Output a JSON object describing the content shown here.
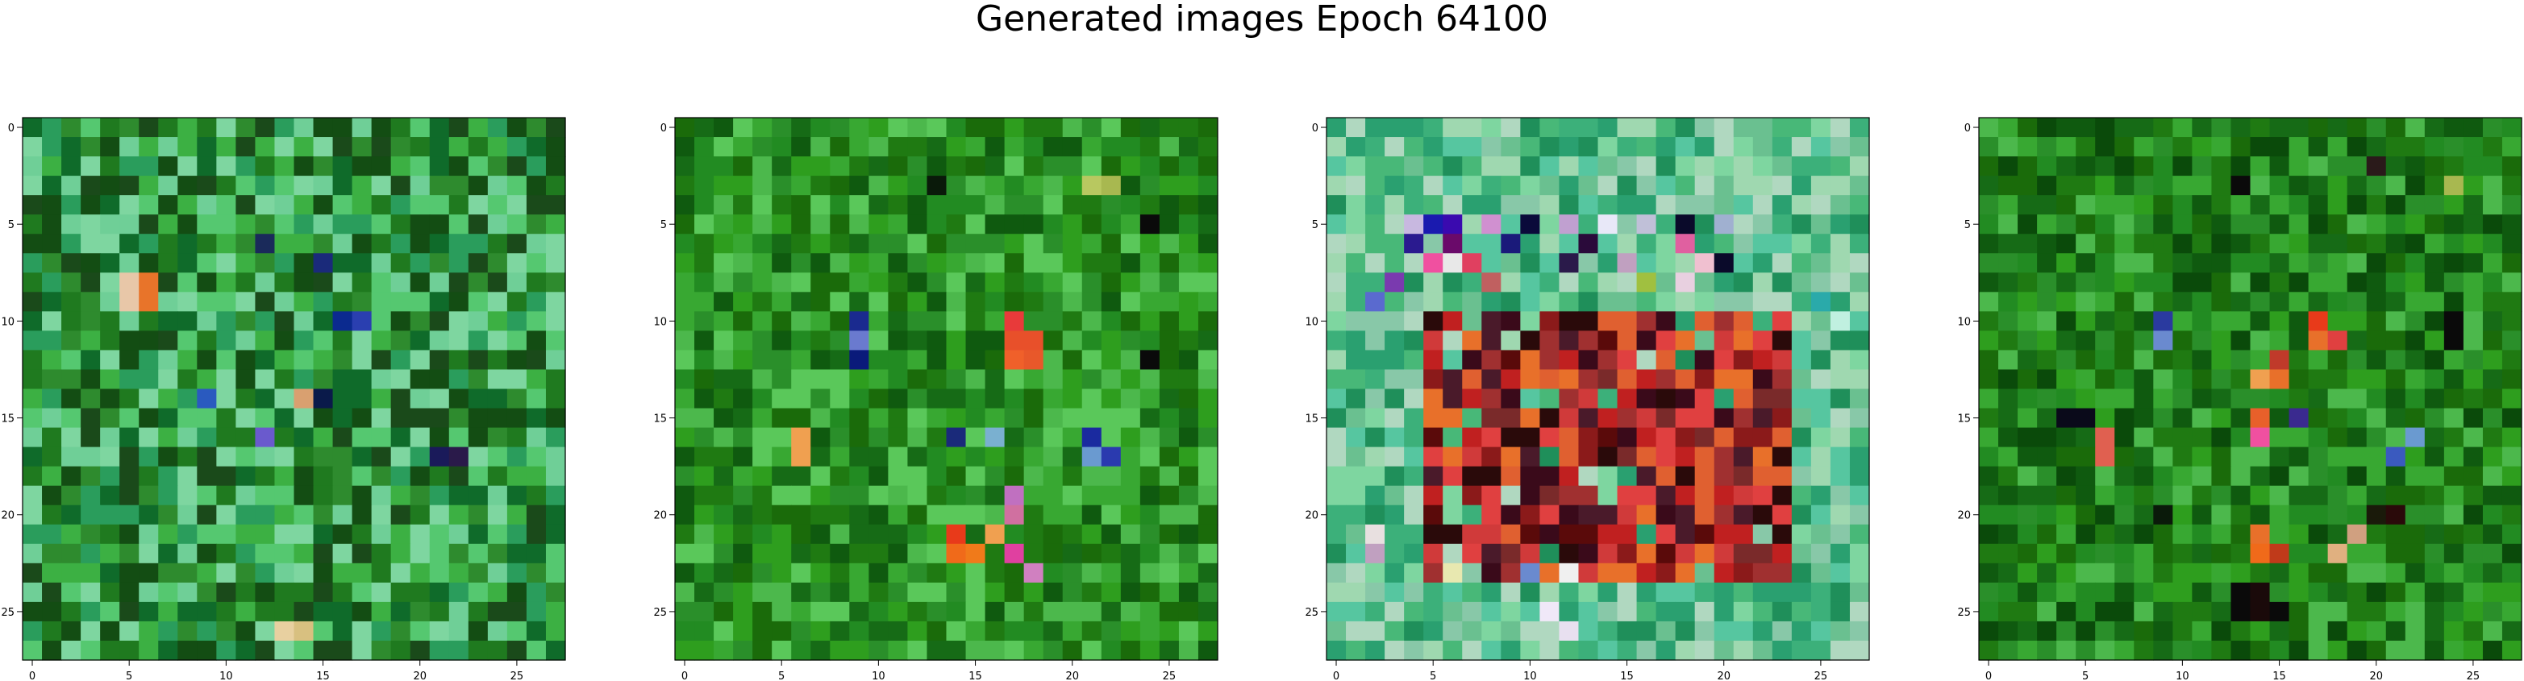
{
  "title": "Generated images Epoch 64100",
  "chart_data": {
    "type": "heatmap",
    "title": "Generated images Epoch 64100",
    "grid": false,
    "image_size": 28,
    "xlim": [
      -0.5,
      27.5
    ],
    "ylim": [
      27.5,
      -0.5
    ],
    "xticks": [
      0,
      5,
      10,
      15,
      20,
      25
    ],
    "yticks": [
      0,
      5,
      10,
      15,
      20,
      25
    ],
    "panels": [
      {
        "palette": [
          "#1a4a1a",
          "#1f7a1f",
          "#2e8b2e",
          "#3cb043",
          "#55c870",
          "#7ed6a0",
          "#0f6b2a",
          "#2a9d5c",
          "#6fcf97",
          "#134d13"
        ],
        "features": [
          {
            "r": 8,
            "c": 5,
            "color": "#e8c7a8"
          },
          {
            "r": 9,
            "c": 5,
            "color": "#e8c7a8"
          },
          {
            "r": 8,
            "c": 6,
            "color": "#e8742a"
          },
          {
            "r": 9,
            "c": 6,
            "color": "#e8742a"
          },
          {
            "r": 10,
            "c": 16,
            "color": "#0b2a8f"
          },
          {
            "r": 10,
            "c": 17,
            "color": "#2a3fb0"
          },
          {
            "r": 6,
            "c": 12,
            "color": "#1a2a5a"
          },
          {
            "r": 7,
            "c": 15,
            "color": "#1a2a7a"
          },
          {
            "r": 14,
            "c": 9,
            "color": "#2a5abf"
          },
          {
            "r": 14,
            "c": 14,
            "color": "#d9a070"
          },
          {
            "r": 14,
            "c": 15,
            "color": "#0a1a4a"
          },
          {
            "r": 16,
            "c": 12,
            "color": "#6a5acd"
          },
          {
            "r": 17,
            "c": 21,
            "color": "#1a1a5a"
          },
          {
            "r": 17,
            "c": 22,
            "color": "#2a1a4a"
          },
          {
            "r": 26,
            "c": 13,
            "color": "#e8d0a0"
          },
          {
            "r": 26,
            "c": 14,
            "color": "#d8c080"
          }
        ]
      },
      {
        "palette": [
          "#1a6b0a",
          "#228b22",
          "#2e9e1e",
          "#38a832",
          "#1f7a12",
          "#4cb84c",
          "#166b16",
          "#2a8f2a",
          "#0f5a0f",
          "#5ac85a"
        ],
        "features": [
          {
            "r": 3,
            "c": 13,
            "color": "#0a1a0a"
          },
          {
            "r": 3,
            "c": 21,
            "color": "#b8c860"
          },
          {
            "r": 3,
            "c": 22,
            "color": "#a8b850"
          },
          {
            "r": 10,
            "c": 9,
            "color": "#1a2a8f"
          },
          {
            "r": 11,
            "c": 9,
            "color": "#6a7acf"
          },
          {
            "r": 12,
            "c": 9,
            "color": "#0a1a7a"
          },
          {
            "r": 10,
            "c": 17,
            "color": "#e83a3a"
          },
          {
            "r": 11,
            "c": 17,
            "color": "#e8502a"
          },
          {
            "r": 12,
            "c": 17,
            "color": "#f0602a"
          },
          {
            "r": 11,
            "c": 18,
            "color": "#e8502a"
          },
          {
            "r": 12,
            "c": 18,
            "color": "#e8582a"
          },
          {
            "r": 16,
            "c": 6,
            "color": "#f0a050"
          },
          {
            "r": 17,
            "c": 6,
            "color": "#f0a050"
          },
          {
            "r": 16,
            "c": 14,
            "color": "#1a2a7a"
          },
          {
            "r": 16,
            "c": 16,
            "color": "#7ab0d0"
          },
          {
            "r": 16,
            "c": 21,
            "color": "#1a2a9f"
          },
          {
            "r": 17,
            "c": 21,
            "color": "#6a9ad0"
          },
          {
            "r": 17,
            "c": 22,
            "color": "#2a3aaf"
          },
          {
            "r": 19,
            "c": 17,
            "color": "#c070c0"
          },
          {
            "r": 20,
            "c": 17,
            "color": "#d070a0"
          },
          {
            "r": 21,
            "c": 14,
            "color": "#e83a1a"
          },
          {
            "r": 22,
            "c": 14,
            "color": "#f06a1a"
          },
          {
            "r": 22,
            "c": 15,
            "color": "#f07a1a"
          },
          {
            "r": 22,
            "c": 17,
            "color": "#e040a0"
          },
          {
            "r": 23,
            "c": 18,
            "color": "#d080c0"
          },
          {
            "r": 21,
            "c": 16,
            "color": "#f0a050"
          },
          {
            "r": 5,
            "c": 24,
            "color": "#0a0a0a"
          },
          {
            "r": 12,
            "c": 24,
            "color": "#0a0a0a"
          }
        ]
      },
      {
        "palette": [
          "#7ed6a0",
          "#3cb07a",
          "#9fd8b0",
          "#56c6a0",
          "#2aa070",
          "#b0d8c0",
          "#48b878",
          "#88c8a8",
          "#1f8f5a",
          "#6ac090"
        ],
        "inner_palette": [
          "#5a0a0a",
          "#8b1a1a",
          "#c02020",
          "#e04040",
          "#3a0a1a",
          "#7a2a2a",
          "#e06030",
          "#a03030",
          "#4a1a2a",
          "#d03a3a",
          "#2a0a0a",
          "#e8702a"
        ],
        "inner_box": {
          "r0": 10,
          "r1": 23,
          "c0": 5,
          "c1": 23
        },
        "features": [
          {
            "r": 5,
            "c": 4,
            "color": "#c8b8e0"
          },
          {
            "r": 5,
            "c": 5,
            "color": "#1a1aaf"
          },
          {
            "r": 5,
            "c": 6,
            "color": "#3a0aaf"
          },
          {
            "r": 5,
            "c": 8,
            "color": "#d090d0"
          },
          {
            "r": 5,
            "c": 10,
            "color": "#0a0a3a"
          },
          {
            "r": 5,
            "c": 12,
            "color": "#c0a0d0"
          },
          {
            "r": 5,
            "c": 14,
            "color": "#e8e8f8"
          },
          {
            "r": 5,
            "c": 16,
            "color": "#c0c0d8"
          },
          {
            "r": 5,
            "c": 18,
            "color": "#0a0a2a"
          },
          {
            "r": 5,
            "c": 20,
            "color": "#a0b0d0"
          },
          {
            "r": 6,
            "c": 4,
            "color": "#2a1a8f"
          },
          {
            "r": 6,
            "c": 6,
            "color": "#6a0a6a"
          },
          {
            "r": 6,
            "c": 9,
            "color": "#1a1a7a"
          },
          {
            "r": 6,
            "c": 13,
            "color": "#2a0a3a"
          },
          {
            "r": 6,
            "c": 18,
            "color": "#e060a0"
          },
          {
            "r": 7,
            "c": 5,
            "color": "#f050a0"
          },
          {
            "r": 7,
            "c": 6,
            "color": "#e8e8e8"
          },
          {
            "r": 7,
            "c": 7,
            "color": "#e04060"
          },
          {
            "r": 7,
            "c": 12,
            "color": "#2a1a4a"
          },
          {
            "r": 7,
            "c": 15,
            "color": "#c0a0c0"
          },
          {
            "r": 7,
            "c": 19,
            "color": "#f0c0d0"
          },
          {
            "r": 7,
            "c": 20,
            "color": "#0a0a2a"
          },
          {
            "r": 8,
            "c": 3,
            "color": "#7a3aaf"
          },
          {
            "r": 8,
            "c": 8,
            "color": "#c06060"
          },
          {
            "r": 8,
            "c": 16,
            "color": "#a0c040"
          },
          {
            "r": 8,
            "c": 18,
            "color": "#e8d0e0"
          },
          {
            "r": 9,
            "c": 2,
            "color": "#5a6acf"
          },
          {
            "r": 9,
            "c": 25,
            "color": "#2aaaaa"
          },
          {
            "r": 10,
            "c": 26,
            "color": "#c0f0e0"
          },
          {
            "r": 23,
            "c": 10,
            "color": "#6a8acf"
          },
          {
            "r": 23,
            "c": 6,
            "color": "#e8e8b0"
          },
          {
            "r": 23,
            "c": 12,
            "color": "#f0f0f0"
          },
          {
            "r": 25,
            "c": 11,
            "color": "#f0e8f8"
          },
          {
            "r": 26,
            "c": 12,
            "color": "#e8e0f0"
          },
          {
            "r": 22,
            "c": 2,
            "color": "#c0a0c0"
          },
          {
            "r": 21,
            "c": 2,
            "color": "#e8e0e0"
          }
        ]
      },
      {
        "palette": [
          "#1a6b0a",
          "#228b22",
          "#2e9e1e",
          "#166b16",
          "#38a832",
          "#0f5a0f",
          "#2a8f2a",
          "#1f7a12",
          "#4cb84c",
          "#0a4a0a"
        ],
        "features": [
          {
            "r": 3,
            "c": 13,
            "color": "#0a0a0a"
          },
          {
            "r": 3,
            "c": 24,
            "color": "#a8b850"
          },
          {
            "r": 2,
            "c": 20,
            "color": "#2a1a1a"
          },
          {
            "r": 10,
            "c": 9,
            "color": "#2a3a9f"
          },
          {
            "r": 11,
            "c": 9,
            "color": "#6a8acf"
          },
          {
            "r": 10,
            "c": 17,
            "color": "#e83a1a"
          },
          {
            "r": 11,
            "c": 17,
            "color": "#e8702a"
          },
          {
            "r": 11,
            "c": 18,
            "color": "#e04040"
          },
          {
            "r": 12,
            "c": 15,
            "color": "#c03a2a"
          },
          {
            "r": 13,
            "c": 14,
            "color": "#f0a050"
          },
          {
            "r": 13,
            "c": 15,
            "color": "#e8702a"
          },
          {
            "r": 15,
            "c": 4,
            "color": "#0a0a1a"
          },
          {
            "r": 15,
            "c": 5,
            "color": "#0a0a1a"
          },
          {
            "r": 15,
            "c": 14,
            "color": "#e8602a"
          },
          {
            "r": 16,
            "c": 14,
            "color": "#f050a0"
          },
          {
            "r": 16,
            "c": 6,
            "color": "#e06050"
          },
          {
            "r": 17,
            "c": 6,
            "color": "#e06050"
          },
          {
            "r": 15,
            "c": 16,
            "color": "#3a2a8f"
          },
          {
            "r": 17,
            "c": 21,
            "color": "#3a5abf"
          },
          {
            "r": 16,
            "c": 22,
            "color": "#6a9ad0"
          },
          {
            "r": 20,
            "c": 9,
            "color": "#0a1a0a"
          },
          {
            "r": 20,
            "c": 21,
            "color": "#2a0a0a"
          },
          {
            "r": 20,
            "c": 20,
            "color": "#1a1a0a"
          },
          {
            "r": 21,
            "c": 14,
            "color": "#e8702a"
          },
          {
            "r": 22,
            "c": 14,
            "color": "#f06a1a"
          },
          {
            "r": 22,
            "c": 15,
            "color": "#c03a1a"
          },
          {
            "r": 22,
            "c": 18,
            "color": "#e0b080"
          },
          {
            "r": 21,
            "c": 19,
            "color": "#d0a080"
          },
          {
            "r": 24,
            "c": 13,
            "color": "#0a0a0a"
          },
          {
            "r": 24,
            "c": 14,
            "color": "#1a0a0a"
          },
          {
            "r": 25,
            "c": 13,
            "color": "#0a0a0a"
          },
          {
            "r": 25,
            "c": 14,
            "color": "#1a0a0a"
          },
          {
            "r": 25,
            "c": 15,
            "color": "#0a0a0a"
          },
          {
            "r": 10,
            "c": 24,
            "color": "#0a0a0a"
          },
          {
            "r": 11,
            "c": 24,
            "color": "#0a0a0a"
          }
        ]
      }
    ]
  }
}
